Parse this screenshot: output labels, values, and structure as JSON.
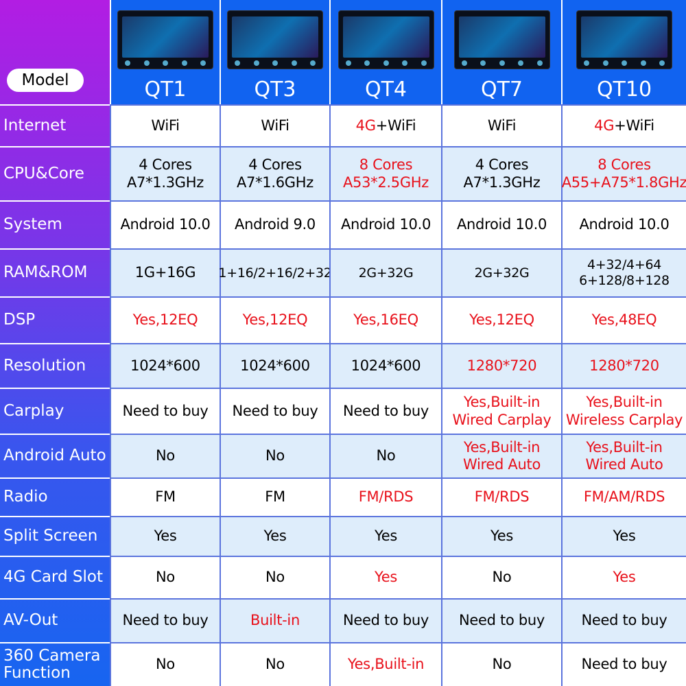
{
  "header": {
    "corner_label": "Model",
    "models": [
      "QT1",
      "QT3",
      "QT4",
      "QT7",
      "QT10"
    ]
  },
  "colors": {
    "red": "#e8101a",
    "header_blue": "#1163f0",
    "row_alt": "#deedfb",
    "grid": "#5b74dd"
  },
  "rows": [
    {
      "label": "Internet",
      "cells": [
        [
          [
            {
              "t": "WiFi"
            }
          ]
        ],
        [
          [
            {
              "t": "WiFi"
            }
          ]
        ],
        [
          [
            {
              "t": "4G",
              "red": true
            },
            {
              "t": "+WiFi"
            }
          ]
        ],
        [
          [
            {
              "t": "WiFi"
            }
          ]
        ],
        [
          [
            {
              "t": "4G",
              "red": true
            },
            {
              "t": "+WiFi"
            }
          ]
        ]
      ]
    },
    {
      "label": "CPU&Core",
      "cells": [
        [
          [
            {
              "t": "4 Cores"
            }
          ],
          [
            {
              "t": "A7*1.3GHz"
            }
          ]
        ],
        [
          [
            {
              "t": "4 Cores"
            }
          ],
          [
            {
              "t": "A7*1.6GHz"
            }
          ]
        ],
        [
          [
            {
              "t": "8 Cores",
              "red": true
            }
          ],
          [
            {
              "t": "A53*2.5GHz",
              "red": true
            }
          ]
        ],
        [
          [
            {
              "t": "4 Cores"
            }
          ],
          [
            {
              "t": "A7*1.3GHz"
            }
          ]
        ],
        [
          [
            {
              "t": "8 Cores",
              "red": true
            }
          ],
          [
            {
              "t": "A55+A75*1.8GHz",
              "red": true
            }
          ]
        ]
      ]
    },
    {
      "label": "System",
      "cells": [
        [
          [
            {
              "t": "Android 10.0"
            }
          ]
        ],
        [
          [
            {
              "t": "Android 9.0"
            }
          ]
        ],
        [
          [
            {
              "t": "Android 10.0"
            }
          ]
        ],
        [
          [
            {
              "t": "Android 10.0"
            }
          ]
        ],
        [
          [
            {
              "t": "Android 10.0"
            }
          ]
        ]
      ]
    },
    {
      "label": "RAM&ROM",
      "cells": [
        [
          [
            {
              "t": "1G+16G"
            }
          ]
        ],
        [
          [
            {
              "t": "1+16/2+16/2+32"
            }
          ]
        ],
        [
          [
            {
              "t": "2G+32G"
            }
          ]
        ],
        [
          [
            {
              "t": "2G+32G"
            }
          ]
        ],
        [
          [
            {
              "t": "4+32/4+64"
            }
          ],
          [
            {
              "t": "6+128/8+128"
            }
          ]
        ]
      ]
    },
    {
      "label": "DSP",
      "cells": [
        [
          [
            {
              "t": "Yes,12EQ",
              "red": true
            }
          ]
        ],
        [
          [
            {
              "t": "Yes,12EQ",
              "red": true
            }
          ]
        ],
        [
          [
            {
              "t": "Yes,16EQ",
              "red": true
            }
          ]
        ],
        [
          [
            {
              "t": "Yes,12EQ",
              "red": true
            }
          ]
        ],
        [
          [
            {
              "t": "Yes,48EQ",
              "red": true
            }
          ]
        ]
      ]
    },
    {
      "label": "Resolution",
      "cells": [
        [
          [
            {
              "t": "1024*600"
            }
          ]
        ],
        [
          [
            {
              "t": "1024*600"
            }
          ]
        ],
        [
          [
            {
              "t": "1024*600"
            }
          ]
        ],
        [
          [
            {
              "t": "1280*720",
              "red": true
            }
          ]
        ],
        [
          [
            {
              "t": "1280*720",
              "red": true
            }
          ]
        ]
      ]
    },
    {
      "label": "Carplay",
      "cells": [
        [
          [
            {
              "t": "Need to buy"
            }
          ]
        ],
        [
          [
            {
              "t": "Need to buy"
            }
          ]
        ],
        [
          [
            {
              "t": "Need to buy"
            }
          ]
        ],
        [
          [
            {
              "t": "Yes,Built-in",
              "red": true
            }
          ],
          [
            {
              "t": "Wired Carplay",
              "red": true
            }
          ]
        ],
        [
          [
            {
              "t": "Yes,Built-in",
              "red": true
            }
          ],
          [
            {
              "t": "Wireless Carplay",
              "red": true
            }
          ]
        ]
      ]
    },
    {
      "label": "Android Auto",
      "cells": [
        [
          [
            {
              "t": "No"
            }
          ]
        ],
        [
          [
            {
              "t": "No"
            }
          ]
        ],
        [
          [
            {
              "t": "No"
            }
          ]
        ],
        [
          [
            {
              "t": "Yes,Built-in",
              "red": true
            }
          ],
          [
            {
              "t": "Wired Auto",
              "red": true
            }
          ]
        ],
        [
          [
            {
              "t": "Yes,Built-in",
              "red": true
            }
          ],
          [
            {
              "t": "Wired Auto",
              "red": true
            }
          ]
        ]
      ]
    },
    {
      "label": "Radio",
      "cells": [
        [
          [
            {
              "t": "FM"
            }
          ]
        ],
        [
          [
            {
              "t": "FM"
            }
          ]
        ],
        [
          [
            {
              "t": "FM/RDS",
              "red": true
            }
          ]
        ],
        [
          [
            {
              "t": "FM/RDS",
              "red": true
            }
          ]
        ],
        [
          [
            {
              "t": "FM/AM/RDS",
              "red": true
            }
          ]
        ]
      ]
    },
    {
      "label": "Split Screen",
      "cells": [
        [
          [
            {
              "t": "Yes"
            }
          ]
        ],
        [
          [
            {
              "t": "Yes"
            }
          ]
        ],
        [
          [
            {
              "t": "Yes"
            }
          ]
        ],
        [
          [
            {
              "t": "Yes"
            }
          ]
        ],
        [
          [
            {
              "t": "Yes"
            }
          ]
        ]
      ]
    },
    {
      "label": "4G Card Slot",
      "cells": [
        [
          [
            {
              "t": "No"
            }
          ]
        ],
        [
          [
            {
              "t": "No"
            }
          ]
        ],
        [
          [
            {
              "t": "Yes",
              "red": true
            }
          ]
        ],
        [
          [
            {
              "t": "No"
            }
          ]
        ],
        [
          [
            {
              "t": "Yes",
              "red": true
            }
          ]
        ]
      ]
    },
    {
      "label": "AV-Out",
      "cells": [
        [
          [
            {
              "t": "Need to buy"
            }
          ]
        ],
        [
          [
            {
              "t": "Built-in",
              "red": true
            }
          ]
        ],
        [
          [
            {
              "t": "Need to buy"
            }
          ]
        ],
        [
          [
            {
              "t": "Need to buy"
            }
          ]
        ],
        [
          [
            {
              "t": "Need to buy"
            }
          ]
        ]
      ]
    },
    {
      "label": "360 Camera Function",
      "cells": [
        [
          [
            {
              "t": "No"
            }
          ]
        ],
        [
          [
            {
              "t": "No"
            }
          ]
        ],
        [
          [
            {
              "t": "Yes,Built-in",
              "red": true
            }
          ]
        ],
        [
          [
            {
              "t": "No"
            }
          ]
        ],
        [
          [
            {
              "t": "Need to buy"
            }
          ]
        ]
      ]
    }
  ]
}
